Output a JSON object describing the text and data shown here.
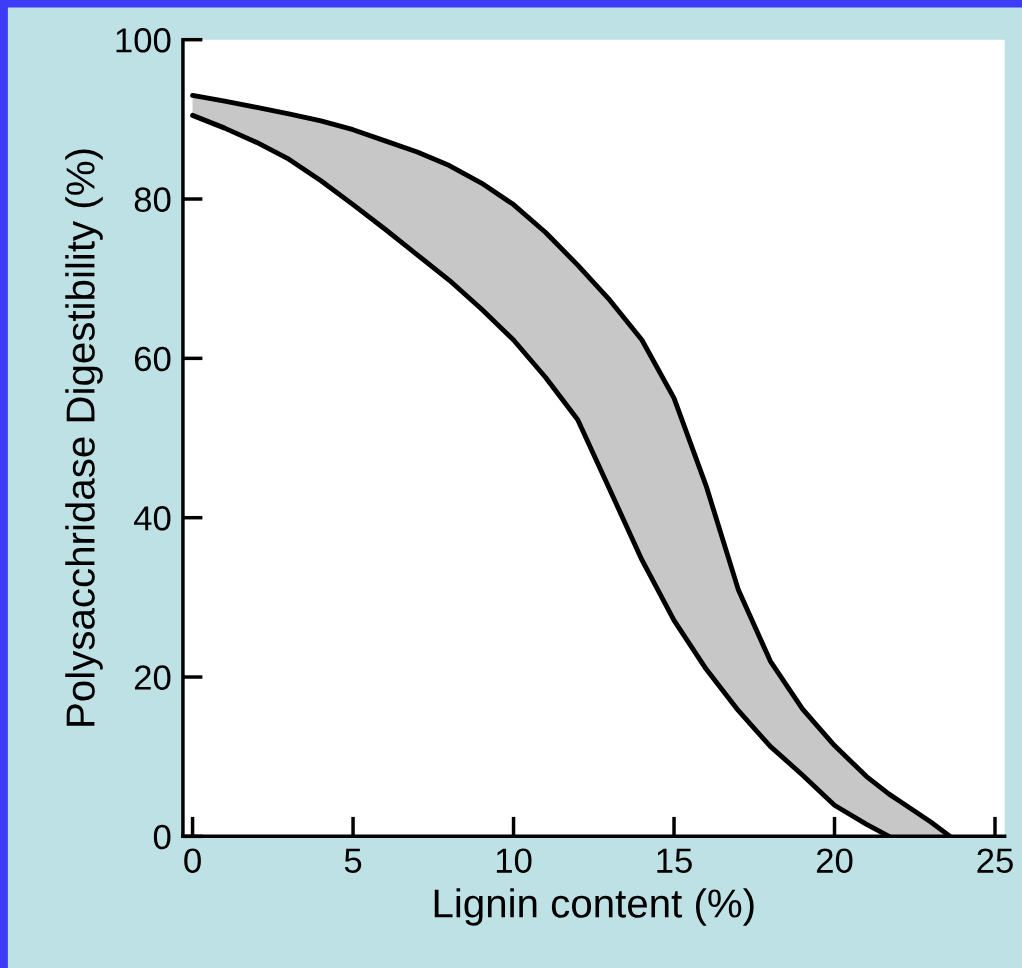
{
  "chart_data": {
    "type": "line",
    "xlabel": "Lignin content (%)",
    "ylabel": "Polysacchridase Digestibility (%)",
    "x": [
      0,
      1,
      2,
      3,
      4,
      5,
      6,
      7,
      8,
      9,
      10,
      11,
      12,
      13,
      14,
      15,
      16,
      17,
      18,
      19,
      20,
      21,
      21.7,
      22,
      23,
      23.6
    ],
    "series": [
      {
        "color": "#000000",
        "values": [
          93,
          92.3,
          91.5,
          90.7,
          89.8,
          88.7,
          87.3,
          85.9,
          84.2,
          82,
          79.3,
          75.8,
          71.7,
          67.3,
          62.3,
          55,
          44,
          31,
          22,
          16,
          11.4,
          7.5,
          5.3,
          4.5,
          1.8,
          0
        ],
        "lower": [
          90.5,
          88.9,
          87.1,
          85,
          82.3,
          79.3,
          76.2,
          73,
          69.8,
          66.2,
          62.3,
          57.6,
          52.3,
          43.5,
          34.7,
          27.1,
          21,
          15.8,
          11.3,
          7.7,
          3.9,
          1.5,
          0,
          0,
          0,
          0
        ],
        "upper": [
          93,
          92.3,
          91.5,
          90.7,
          89.8,
          88.7,
          87.3,
          85.9,
          84.2,
          82,
          79.3,
          75.8,
          71.7,
          67.3,
          62.3,
          55,
          44,
          31,
          22,
          16,
          11.4,
          7.5,
          5.3,
          4.5,
          1.8,
          0
        ]
      },
      {
        "color": "#000000",
        "values": [
          90.5,
          88.9,
          87.1,
          85,
          82.3,
          79.3,
          76.2,
          73,
          69.8,
          66.2,
          62.3,
          57.6,
          52.3,
          43.5,
          34.7,
          27.1,
          21,
          15.8,
          11.3,
          7.7,
          3.9,
          1.5,
          0,
          null,
          null,
          null
        ]
      }
    ],
    "xlim": [
      -0.3,
      25.3
    ],
    "xticks": [
      0,
      5,
      10,
      15,
      20,
      25
    ],
    "ylim": [
      0,
      100
    ],
    "yticks": [
      0,
      20,
      40,
      60,
      80,
      100
    ],
    "grid": false,
    "legend": false
  }
}
